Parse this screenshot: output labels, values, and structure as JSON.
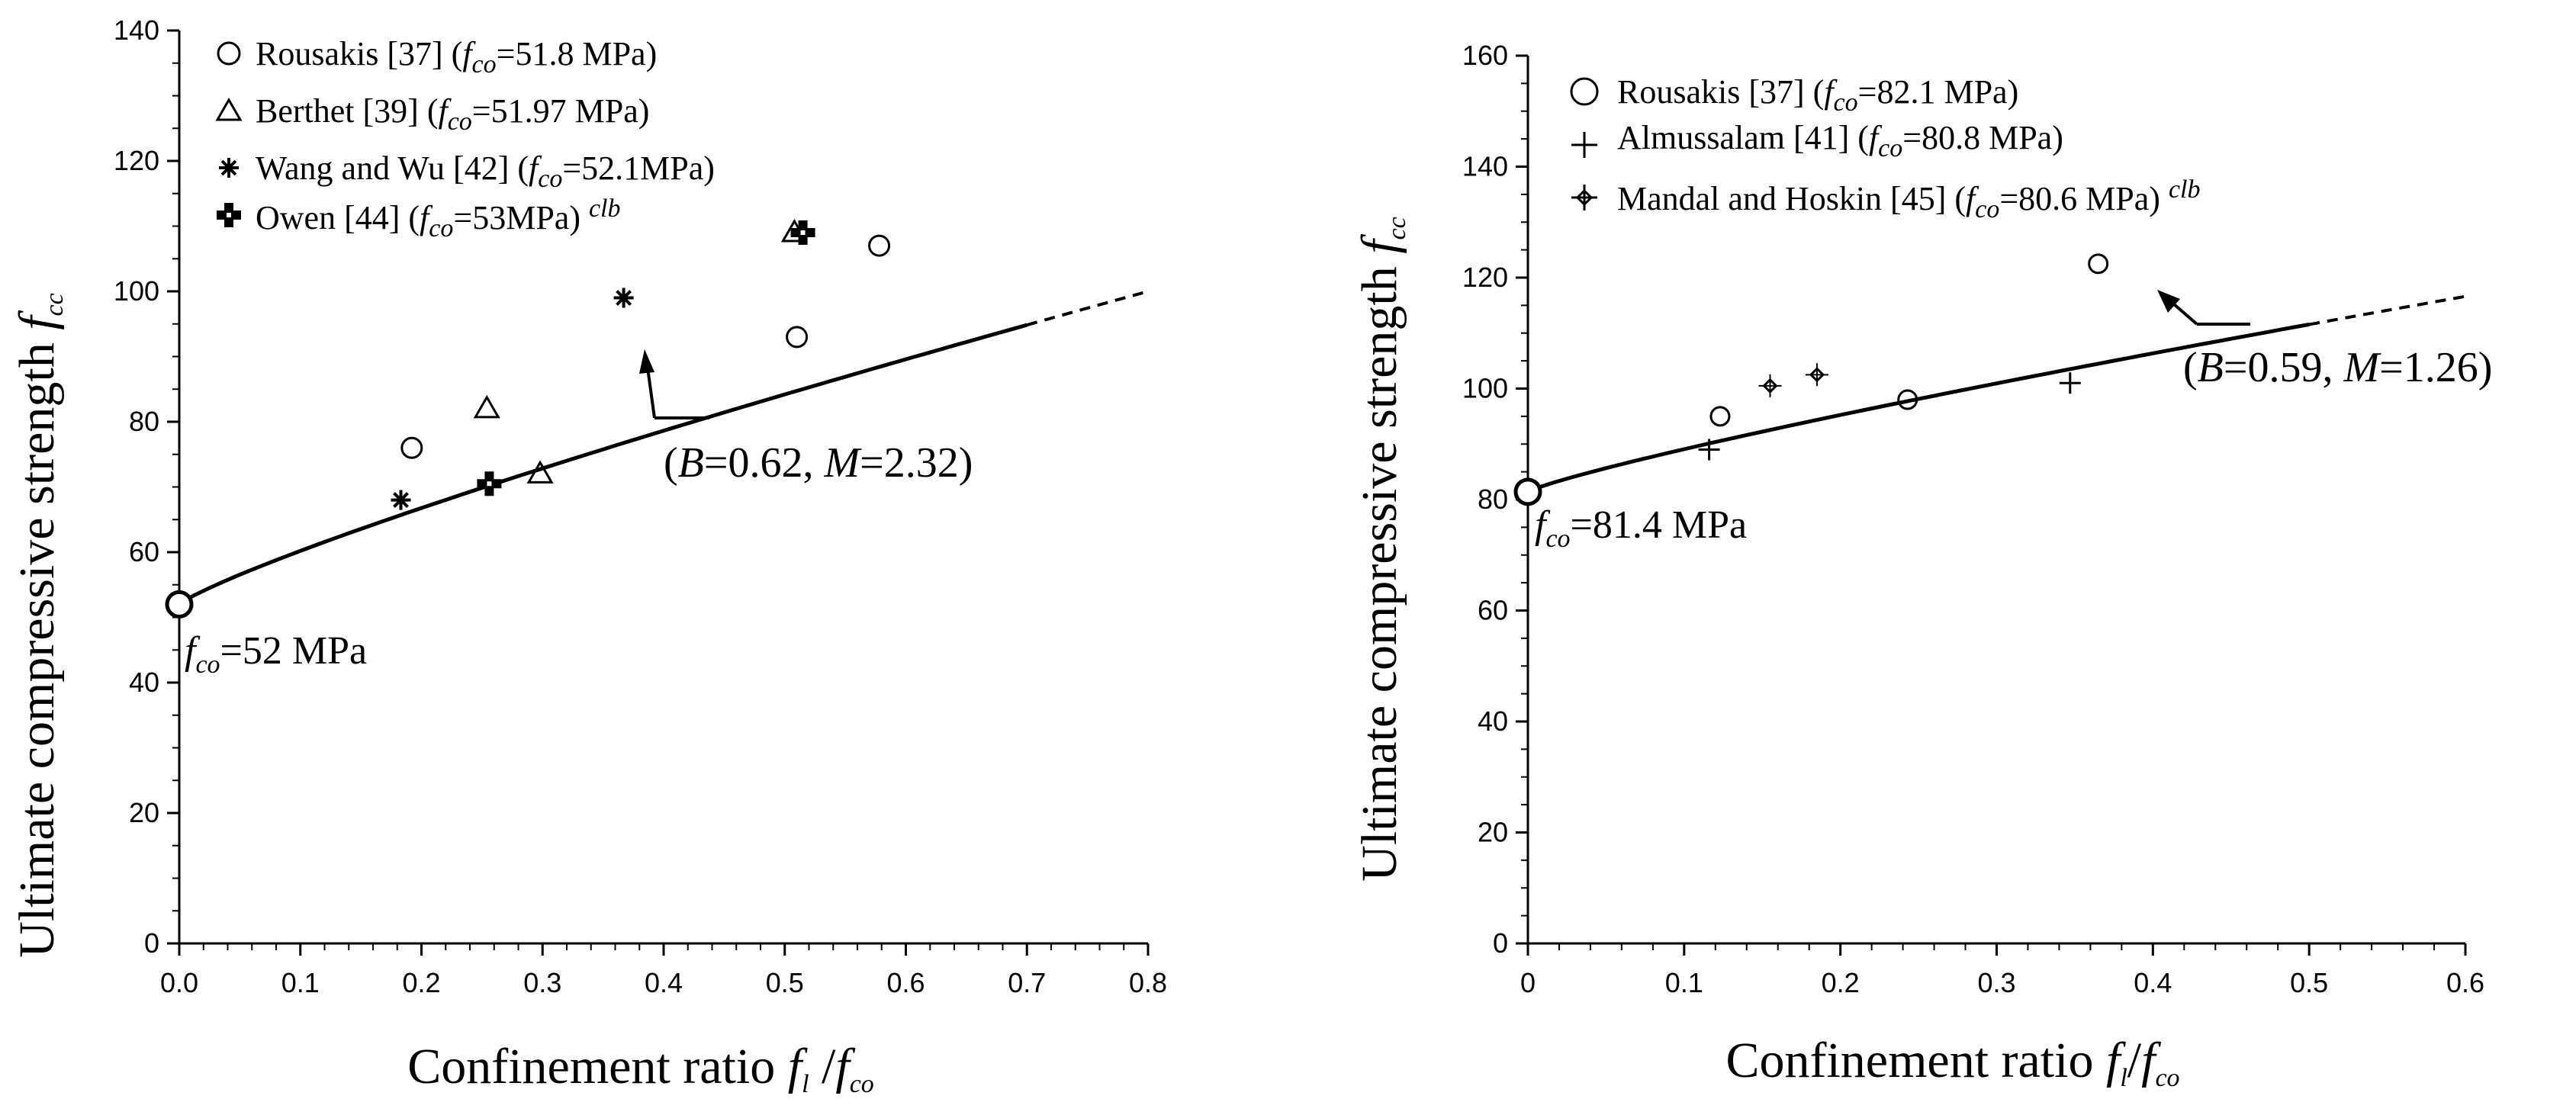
{
  "chart_data": [
    {
      "type": "scatter",
      "xlabel": "Confinement ratio fl /fco",
      "ylabel": "Ultimate compressive strength fcc",
      "xlim": [
        0,
        0.8
      ],
      "ylim": [
        0,
        140
      ],
      "xticks": [
        "0.0",
        "0.1",
        "0.2",
        "0.3",
        "0.4",
        "0.5",
        "0.6",
        "0.7",
        "0.8"
      ],
      "yticks": [
        "0",
        "20",
        "40",
        "60",
        "80",
        "100",
        "120",
        "140"
      ],
      "grid": false,
      "legend_position": "top-left",
      "series": [
        {
          "name": "Rousakis [37] (fco=51.8 MPa)",
          "marker": "circle",
          "points": [
            [
              0.192,
              76
            ],
            [
              0.51,
              93
            ],
            [
              0.578,
              107
            ]
          ]
        },
        {
          "name": "Berthet [39] (fco=51.97 MPa)",
          "marker": "triangle",
          "points": [
            [
              0.254,
              82
            ],
            [
              0.298,
              72
            ],
            [
              0.508,
              109
            ]
          ]
        },
        {
          "name": "Wang and Wu [42] (fco=52.1MPa)",
          "marker": "star",
          "points": [
            [
              0.183,
              68
            ],
            [
              0.367,
              99
            ]
          ]
        },
        {
          "name": "Owen [44] (fco=53MPa) clb",
          "marker": "cross",
          "points": [
            [
              0.256,
              70.5
            ],
            [
              0.515,
              109
            ]
          ]
        }
      ],
      "model_curve": {
        "B": 0.62,
        "M": 2.32,
        "fco": 52,
        "solid_range": [
          0,
          0.7
        ],
        "dashed_range": [
          0.7,
          0.8
        ]
      },
      "annotations": {
        "curve_label": "(B=0.62, M=2.32)",
        "origin_label": "fco=52 MPa"
      }
    },
    {
      "type": "scatter",
      "xlabel": "Confinement ratio fl/fco",
      "ylabel": "Ultimate compressive strength fcc",
      "xlim": [
        0,
        0.6
      ],
      "ylim": [
        0,
        160
      ],
      "xticks": [
        "0",
        "0.1",
        "0.2",
        "0.3",
        "0.4",
        "0.5",
        "0.6"
      ],
      "yticks": [
        "0",
        "20",
        "40",
        "60",
        "80",
        "100",
        "120",
        "140",
        "160"
      ],
      "grid": false,
      "legend_position": "top-left",
      "series": [
        {
          "name": "Rousakis [37] (fco=82.1 MPa)",
          "marker": "circle",
          "points": [
            [
              0.123,
              95
            ],
            [
              0.243,
              98
            ],
            [
              0.365,
              122.5
            ]
          ]
        },
        {
          "name": "Almussalam [41] (fco=80.8 MPa)",
          "marker": "plus",
          "points": [
            [
              0.116,
              89
            ],
            [
              0.347,
              101
            ]
          ]
        },
        {
          "name": "Mandal and Hoskin [45] (fco=80.6 MPa) clb",
          "marker": "diamond-plus",
          "points": [
            [
              0.155,
              100.5
            ],
            [
              0.185,
              102.5
            ]
          ]
        }
      ],
      "model_curve": {
        "B": 0.59,
        "M": 1.26,
        "fco": 81.4,
        "solid_range": [
          0,
          0.5
        ],
        "dashed_range": [
          0.5,
          0.6
        ]
      },
      "annotations": {
        "curve_label": "(B=0.59, M=1.26)",
        "origin_label": "fco=81.4 MPa"
      }
    }
  ]
}
